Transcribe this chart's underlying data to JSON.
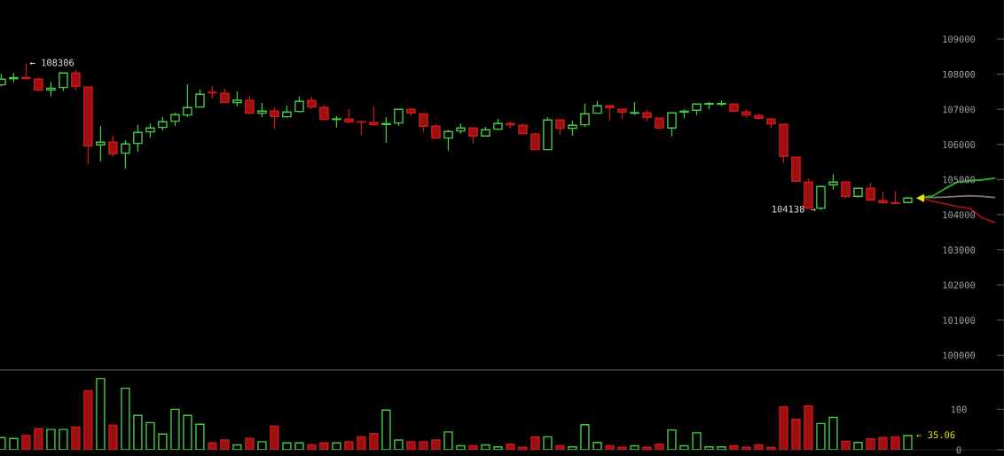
{
  "chart_data": [
    {
      "type": "candlestick",
      "categories": [
        null,
        null,
        null,
        null,
        null,
        null,
        null,
        null,
        null,
        null,
        null,
        null,
        null,
        null,
        null,
        null,
        null,
        null,
        null,
        null,
        null,
        null,
        null,
        null,
        null,
        null,
        null,
        null,
        null,
        null,
        null,
        null,
        null,
        null,
        null,
        null,
        null,
        null,
        null,
        null,
        null,
        null,
        null,
        null,
        null,
        null,
        null,
        null,
        null,
        null,
        null,
        null,
        null,
        null,
        null,
        null,
        null,
        null,
        null,
        null,
        null,
        null,
        null,
        null,
        null,
        null,
        null,
        null,
        null,
        null,
        null,
        null,
        null,
        null,
        null,
        null,
        null,
        null,
        null,
        null,
        null
      ],
      "ohlc": [
        [
          107695,
          108006,
          107650,
          107855
        ],
        [
          107870,
          108040,
          107770,
          107900
        ],
        [
          107905,
          108306,
          107870,
          107875
        ],
        [
          107855,
          107905,
          107518,
          107543
        ],
        [
          107552,
          107779,
          107367,
          107602
        ],
        [
          107619,
          108040,
          107518,
          108032
        ],
        [
          108032,
          108116,
          107543,
          107653
        ],
        [
          107628,
          107628,
          105439,
          105961
        ],
        [
          105986,
          106525,
          105515,
          106062
        ],
        [
          106062,
          106247,
          105650,
          105734
        ],
        [
          105751,
          106121,
          105313,
          106012
        ],
        [
          106028,
          106550,
          105793,
          106340
        ],
        [
          106357,
          106592,
          106197,
          106466
        ],
        [
          106483,
          106778,
          106399,
          106643
        ],
        [
          106660,
          106904,
          106525,
          106845
        ],
        [
          106836,
          107712,
          106778,
          107047
        ],
        [
          107064,
          107560,
          107050,
          107426
        ],
        [
          107485,
          107661,
          107308,
          107468
        ],
        [
          107451,
          107586,
          107180,
          107190
        ],
        [
          107190,
          107510,
          107081,
          107257
        ],
        [
          107249,
          107384,
          106853,
          106887
        ],
        [
          106887,
          107182,
          106778,
          106946
        ],
        [
          106946,
          107055,
          106432,
          106794
        ],
        [
          106786,
          107106,
          106761,
          106921
        ],
        [
          106937,
          107358,
          106912,
          107224
        ],
        [
          107249,
          107358,
          107013,
          107064
        ],
        [
          107047,
          107131,
          106700,
          106710
        ],
        [
          106710,
          106803,
          106483,
          106727
        ],
        [
          106719,
          107005,
          106609,
          106643
        ],
        [
          106647,
          106668,
          106256,
          106634
        ],
        [
          106618,
          107081,
          106533,
          106559
        ],
        [
          106567,
          106778,
          106045,
          106592
        ],
        [
          106609,
          107000,
          106533,
          106996
        ],
        [
          106996,
          107022,
          106811,
          106895
        ],
        [
          106870,
          106870,
          106357,
          106517
        ],
        [
          106517,
          106592,
          106155,
          106180
        ],
        [
          106180,
          106416,
          105826,
          106365
        ],
        [
          106382,
          106592,
          106306,
          106466
        ],
        [
          106466,
          106470,
          106020,
          106239
        ],
        [
          106239,
          106500,
          106230,
          106416
        ],
        [
          106432,
          106727,
          106407,
          106592
        ],
        [
          106592,
          106651,
          106458,
          106559
        ],
        [
          106542,
          106592,
          106289,
          106306
        ],
        [
          106289,
          106348,
          105845,
          105852
        ],
        [
          105852,
          106778,
          105845,
          106693
        ],
        [
          106693,
          106700,
          106273,
          106458
        ],
        [
          106458,
          106677,
          106247,
          106542
        ],
        [
          106559,
          107156,
          106500,
          106870
        ],
        [
          106887,
          107232,
          106880,
          107097
        ],
        [
          107097,
          107123,
          106677,
          107047
        ],
        [
          106996,
          107000,
          106735,
          106921
        ],
        [
          106887,
          107207,
          106845,
          106904
        ],
        [
          106895,
          106980,
          106660,
          106769
        ],
        [
          106744,
          106750,
          106460,
          106466
        ],
        [
          106466,
          106900,
          106230,
          106895
        ],
        [
          106921,
          106996,
          106744,
          106946
        ],
        [
          106971,
          107150,
          106836,
          107148
        ],
        [
          107148,
          107207,
          106996,
          107165
        ],
        [
          107148,
          107249,
          107097,
          107165
        ],
        [
          107148,
          107150,
          106912,
          106946
        ],
        [
          106921,
          106996,
          106761,
          106836
        ],
        [
          106820,
          106879,
          106710,
          106744
        ],
        [
          106719,
          106725,
          106458,
          106584
        ],
        [
          106567,
          106570,
          105473,
          105658
        ],
        [
          105633,
          105640,
          104945,
          104951
        ],
        [
          104926,
          105027,
          104175,
          104185
        ],
        [
          104185,
          104825,
          104138,
          104800
        ],
        [
          104850,
          105153,
          104715,
          104926
        ],
        [
          104926,
          104930,
          104463,
          104522
        ],
        [
          104522,
          104750,
          104488,
          104749
        ],
        [
          104749,
          104901,
          104387,
          104421
        ],
        [
          104396,
          104648,
          104340,
          104345
        ],
        [
          104337,
          104673,
          104315,
          104320
        ],
        [
          104345,
          104497,
          104340,
          104471
        ],
        null,
        null,
        null,
        null,
        null,
        null,
        null
      ],
      "colors": [
        "#44cc44",
        "#44cc44",
        "#9b1111",
        "#9b1111",
        "#44cc44",
        "#44cc44",
        "#9b1111",
        "#9b1111",
        "#44cc44",
        "#9b1111",
        "#44cc44",
        "#44cc44",
        "#44cc44",
        "#44cc44",
        "#44cc44",
        "#44cc44",
        "#44cc44",
        "#9b1111",
        "#9b1111",
        "#44cc44",
        "#9b1111",
        "#44cc44",
        "#9b1111",
        "#44cc44",
        "#44cc44",
        "#9b1111",
        "#9b1111",
        "#44cc44",
        "#9b1111",
        "#9b1111",
        "#9b1111",
        "#44cc44",
        "#44cc44",
        "#9b1111",
        "#9b1111",
        "#9b1111",
        "#44cc44",
        "#44cc44",
        "#9b1111",
        "#44cc44",
        "#44cc44",
        "#9b1111",
        "#9b1111",
        "#9b1111",
        "#44cc44",
        "#9b1111",
        "#44cc44",
        "#44cc44",
        "#44cc44",
        "#9b1111",
        "#9b1111",
        "#44cc44",
        "#9b1111",
        "#9b1111",
        "#44cc44",
        "#44cc44",
        "#44cc44",
        "#44cc44",
        "#44cc44",
        "#9b1111",
        "#9b1111",
        "#9b1111",
        "#9b1111",
        "#9b1111",
        "#9b1111",
        "#9b1111",
        "#44cc44",
        "#44cc44",
        "#9b1111",
        "#44cc44",
        "#9b1111",
        "#9b1111",
        "#9b1111",
        "#44cc44",
        null,
        null,
        null,
        null,
        null,
        null,
        null
      ],
      "series": [
        {
          "type": "line",
          "color": "#7a7a7a",
          "values": [
            null,
            null,
            null,
            null,
            null,
            null,
            null,
            null,
            null,
            null,
            null,
            null,
            null,
            null,
            null,
            null,
            null,
            null,
            null,
            null,
            null,
            null,
            null,
            null,
            null,
            null,
            null,
            null,
            null,
            null,
            null,
            null,
            null,
            null,
            null,
            null,
            null,
            null,
            null,
            null,
            null,
            null,
            null,
            null,
            null,
            null,
            null,
            null,
            null,
            null,
            null,
            null,
            null,
            null,
            null,
            null,
            null,
            null,
            null,
            null,
            null,
            null,
            null,
            null,
            null,
            null,
            null,
            null,
            null,
            null,
            null,
            null,
            null,
            null,
            104490,
            104490,
            104500,
            104520,
            104540,
            104520,
            104490
          ]
        },
        {
          "type": "line",
          "color": "#22b422",
          "values": [
            null,
            null,
            null,
            null,
            null,
            null,
            null,
            null,
            null,
            null,
            null,
            null,
            null,
            null,
            null,
            null,
            null,
            null,
            null,
            null,
            null,
            null,
            null,
            null,
            null,
            null,
            null,
            null,
            null,
            null,
            null,
            null,
            null,
            null,
            null,
            null,
            null,
            null,
            null,
            null,
            null,
            null,
            null,
            null,
            null,
            null,
            null,
            null,
            null,
            null,
            null,
            null,
            null,
            null,
            null,
            null,
            null,
            null,
            null,
            null,
            null,
            null,
            null,
            null,
            null,
            null,
            null,
            null,
            null,
            null,
            null,
            null,
            null,
            null,
            104490,
            104530,
            104740,
            104930,
            104960,
            104990,
            105040
          ]
        },
        {
          "type": "line",
          "color": "#a01010",
          "values": [
            null,
            null,
            null,
            null,
            null,
            null,
            null,
            null,
            null,
            null,
            null,
            null,
            null,
            null,
            null,
            null,
            null,
            null,
            null,
            null,
            null,
            null,
            null,
            null,
            null,
            null,
            null,
            null,
            null,
            null,
            null,
            null,
            null,
            null,
            null,
            null,
            null,
            null,
            null,
            null,
            null,
            null,
            null,
            null,
            null,
            null,
            null,
            null,
            null,
            null,
            null,
            null,
            null,
            null,
            null,
            null,
            null,
            null,
            null,
            null,
            null,
            null,
            null,
            null,
            null,
            null,
            null,
            null,
            null,
            null,
            null,
            null,
            null,
            null,
            104490,
            104380,
            104310,
            104230,
            104180,
            103910,
            103780
          ]
        },
        {
          "type": "scatter",
          "color": "#e6e600",
          "marker": "triangle",
          "values": [
            null,
            null,
            null,
            null,
            null,
            null,
            null,
            null,
            null,
            null,
            null,
            null,
            null,
            null,
            null,
            null,
            null,
            null,
            null,
            null,
            null,
            null,
            null,
            null,
            null,
            null,
            null,
            null,
            null,
            null,
            null,
            null,
            null,
            null,
            null,
            null,
            null,
            null,
            null,
            null,
            null,
            null,
            null,
            null,
            null,
            null,
            null,
            null,
            null,
            null,
            null,
            null,
            null,
            null,
            null,
            null,
            null,
            null,
            null,
            null,
            null,
            null,
            null,
            null,
            null,
            null,
            null,
            null,
            null,
            null,
            null,
            null,
            null,
            null,
            104470,
            null,
            null,
            null,
            null,
            null,
            null
          ]
        }
      ],
      "ylim": [
        99580,
        110110
      ],
      "yticks": [
        100000,
        101000,
        102000,
        103000,
        104000,
        105000,
        106000,
        107000,
        108000,
        109000
      ],
      "tick_labels": "y",
      "annotations": [
        "← 108306",
        "104138 →"
      ]
    },
    {
      "type": "bar",
      "categories": [
        null,
        null,
        null,
        null,
        null,
        null,
        null,
        null,
        null,
        null,
        null,
        null,
        null,
        null,
        null,
        null,
        null,
        null,
        null,
        null,
        null,
        null,
        null,
        null,
        null,
        null,
        null,
        null,
        null,
        null,
        null,
        null,
        null,
        null,
        null,
        null,
        null,
        null,
        null,
        null,
        null,
        null,
        null,
        null,
        null,
        null,
        null,
        null,
        null,
        null,
        null,
        null,
        null,
        null,
        null,
        null,
        null,
        null,
        null,
        null,
        null,
        null,
        null,
        null,
        null,
        null,
        null,
        null,
        null,
        null,
        null,
        null,
        null,
        null,
        null,
        null,
        null,
        null,
        null,
        null,
        null
      ],
      "values": [
        30,
        28,
        35,
        52,
        50,
        50,
        56,
        146,
        176,
        61,
        152,
        85,
        67,
        39,
        100,
        85,
        63,
        17,
        24,
        12,
        28,
        20,
        59,
        17,
        17,
        12,
        17,
        17,
        20,
        32,
        40,
        98,
        24,
        20,
        20,
        24,
        44,
        10,
        10,
        12,
        7,
        14,
        6,
        32,
        32,
        10,
        7,
        62,
        18,
        10,
        6,
        10,
        6,
        14,
        49,
        10,
        42,
        7,
        7,
        10,
        6,
        12,
        6,
        106,
        75,
        108,
        65,
        80,
        21,
        18,
        27,
        30,
        32,
        35,
        null,
        null,
        null,
        null,
        null,
        null,
        null
      ],
      "colors": [
        "#44cc44",
        "#44cc44",
        "#9b1111",
        "#9b1111",
        "#44cc44",
        "#44cc44",
        "#9b1111",
        "#9b1111",
        "#44cc44",
        "#9b1111",
        "#44cc44",
        "#44cc44",
        "#44cc44",
        "#44cc44",
        "#44cc44",
        "#44cc44",
        "#44cc44",
        "#9b1111",
        "#9b1111",
        "#44cc44",
        "#9b1111",
        "#44cc44",
        "#9b1111",
        "#44cc44",
        "#44cc44",
        "#9b1111",
        "#9b1111",
        "#44cc44",
        "#9b1111",
        "#9b1111",
        "#9b1111",
        "#44cc44",
        "#44cc44",
        "#9b1111",
        "#9b1111",
        "#9b1111",
        "#44cc44",
        "#44cc44",
        "#9b1111",
        "#44cc44",
        "#44cc44",
        "#9b1111",
        "#9b1111",
        "#9b1111",
        "#44cc44",
        "#9b1111",
        "#44cc44",
        "#44cc44",
        "#44cc44",
        "#9b1111",
        "#9b1111",
        "#44cc44",
        "#9b1111",
        "#9b1111",
        "#44cc44",
        "#44cc44",
        "#44cc44",
        "#44cc44",
        "#44cc44",
        "#9b1111",
        "#9b1111",
        "#9b1111",
        "#9b1111",
        "#9b1111",
        "#9b1111",
        "#9b1111",
        "#44cc44",
        "#44cc44",
        "#9b1111",
        "#44cc44",
        "#9b1111",
        "#9b1111",
        "#9b1111",
        "#44cc44",
        null,
        null,
        null,
        null,
        null,
        null,
        null
      ],
      "ylim": [
        0,
        195
      ],
      "yticks": [
        0,
        100
      ],
      "tick_labels": "y",
      "annotations": [
        "← 35.06"
      ]
    }
  ]
}
